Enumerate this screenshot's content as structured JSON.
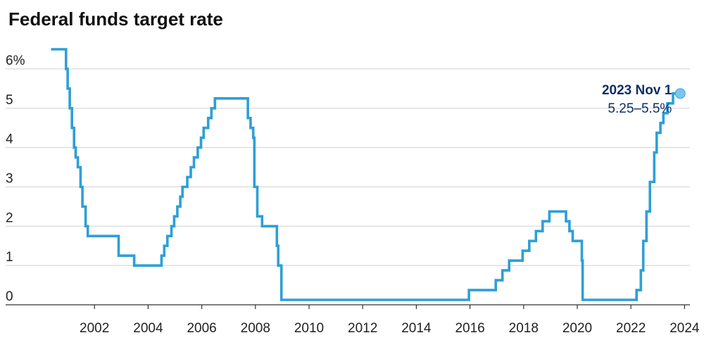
{
  "chart_data": {
    "type": "line",
    "title": "Federal funds target rate",
    "xlabel": "",
    "ylabel": "",
    "xlim": [
      2000,
      2024.2
    ],
    "ylim": [
      0,
      6.5
    ],
    "grid": true,
    "x_ticks": [
      {
        "value": 2002,
        "label": "2002"
      },
      {
        "value": 2004,
        "label": "2004"
      },
      {
        "value": 2006,
        "label": "2006"
      },
      {
        "value": 2008,
        "label": "2008"
      },
      {
        "value": 2010,
        "label": "2010"
      },
      {
        "value": 2012,
        "label": "2012"
      },
      {
        "value": 2014,
        "label": "2014"
      },
      {
        "value": 2016,
        "label": "2016"
      },
      {
        "value": 2018,
        "label": "2018"
      },
      {
        "value": 2020,
        "label": "2020"
      },
      {
        "value": 2022,
        "label": "2022"
      },
      {
        "value": 2024,
        "label": "2024"
      }
    ],
    "y_ticks": [
      {
        "value": 0,
        "label": "0"
      },
      {
        "value": 1,
        "label": "1"
      },
      {
        "value": 2,
        "label": "2"
      },
      {
        "value": 3,
        "label": "3"
      },
      {
        "value": 4,
        "label": "4"
      },
      {
        "value": 5,
        "label": "5"
      },
      {
        "value": 6,
        "label": "6%"
      }
    ],
    "series": [
      {
        "color": "#2e9fd6",
        "step": true,
        "x": [
          2000.38,
          2000.94,
          2001.0,
          2001.08,
          2001.16,
          2001.24,
          2001.3,
          2001.38,
          2001.48,
          2001.55,
          2001.67,
          2001.75,
          2001.85,
          2001.93,
          2002.9,
          2003.48,
          2004.5,
          2004.6,
          2004.72,
          2004.87,
          2004.97,
          2005.09,
          2005.2,
          2005.28,
          2005.46,
          2005.59,
          2005.71,
          2005.85,
          2005.97,
          2006.07,
          2006.24,
          2006.36,
          2006.49,
          2007.72,
          2007.82,
          2007.92,
          2007.96,
          2008.07,
          2008.25,
          2008.31,
          2008.8,
          2008.85,
          2008.97,
          2015.96,
          2016.96,
          2017.21,
          2017.46,
          2017.96,
          2018.21,
          2018.46,
          2018.71,
          2018.96,
          2019.58,
          2019.71,
          2019.83,
          2020.17,
          2020.2,
          2022.21,
          2022.37,
          2022.46,
          2022.58,
          2022.71,
          2022.87,
          2022.96,
          2023.1,
          2023.21,
          2023.36,
          2023.57,
          2023.84
        ],
        "y": [
          6.5,
          6.0,
          5.5,
          5.0,
          4.5,
          4.0,
          3.75,
          3.5,
          3.0,
          2.5,
          2.0,
          1.75,
          1.75,
          1.75,
          1.25,
          1.0,
          1.25,
          1.5,
          1.75,
          2.0,
          2.25,
          2.5,
          2.75,
          3.0,
          3.25,
          3.5,
          3.75,
          4.0,
          4.25,
          4.5,
          4.75,
          5.0,
          5.25,
          4.75,
          4.5,
          4.25,
          3.0,
          2.25,
          2.0,
          2.0,
          1.5,
          1.0,
          0.125,
          0.375,
          0.625,
          0.875,
          1.125,
          1.375,
          1.625,
          1.875,
          2.125,
          2.375,
          2.125,
          1.875,
          1.625,
          1.125,
          0.125,
          0.375,
          0.875,
          1.625,
          2.375,
          3.125,
          3.875,
          4.375,
          4.625,
          4.875,
          5.125,
          5.375,
          5.375
        ]
      }
    ],
    "annotation": {
      "x": 2023.84,
      "y": 5.375,
      "date_label": "2023 Nov 1",
      "range_label": "5.25–5.5%",
      "date_color": "#0d2f66",
      "range_color": "#0d2f66",
      "marker_color": "#7cc4ec"
    }
  }
}
